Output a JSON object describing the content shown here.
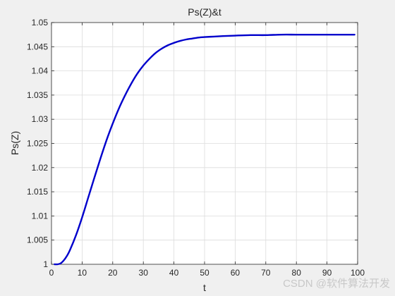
{
  "chart_data": {
    "type": "line",
    "title": "Ps(Z)&t",
    "xlabel": "t",
    "ylabel": "Ps(Z)",
    "xlim": [
      0,
      100
    ],
    "ylim": [
      1,
      1.05
    ],
    "xticks": [
      0,
      10,
      20,
      30,
      40,
      50,
      60,
      70,
      80,
      90,
      100
    ],
    "yticks": [
      1,
      1.005,
      1.01,
      1.015,
      1.02,
      1.025,
      1.03,
      1.035,
      1.04,
      1.045,
      1.05
    ],
    "xtick_labels": [
      "0",
      "10",
      "20",
      "30",
      "40",
      "50",
      "60",
      "70",
      "80",
      "90",
      "100"
    ],
    "ytick_labels": [
      "1",
      "1.005",
      "1.01",
      "1.015",
      "1.02",
      "1.025",
      "1.03",
      "1.035",
      "1.04",
      "1.045",
      "1.05"
    ],
    "grid": true,
    "series": [
      {
        "color": "#0000cc",
        "x": [
          1,
          2,
          3,
          4,
          5,
          6,
          8,
          10,
          12,
          14,
          16,
          18,
          20,
          22,
          24,
          26,
          28,
          30,
          32,
          34,
          36,
          38,
          40,
          42,
          44,
          46,
          48,
          50,
          53,
          56,
          60,
          65,
          70,
          75,
          80,
          85,
          90,
          95,
          99
        ],
        "y": [
          1.0,
          1.0,
          1.0002,
          1.0008,
          1.0017,
          1.0029,
          1.006,
          1.0097,
          1.0138,
          1.0179,
          1.0219,
          1.0257,
          1.0291,
          1.0322,
          1.0349,
          1.0373,
          1.0394,
          1.0411,
          1.0425,
          1.0437,
          1.0446,
          1.0453,
          1.0458,
          1.0462,
          1.0465,
          1.0467,
          1.0469,
          1.047,
          1.0471,
          1.0472,
          1.0473,
          1.0474,
          1.0474,
          1.0475,
          1.0475,
          1.0475,
          1.0475,
          1.0475,
          1.0475
        ]
      }
    ]
  },
  "watermark": "CSDN @软件算法开发"
}
